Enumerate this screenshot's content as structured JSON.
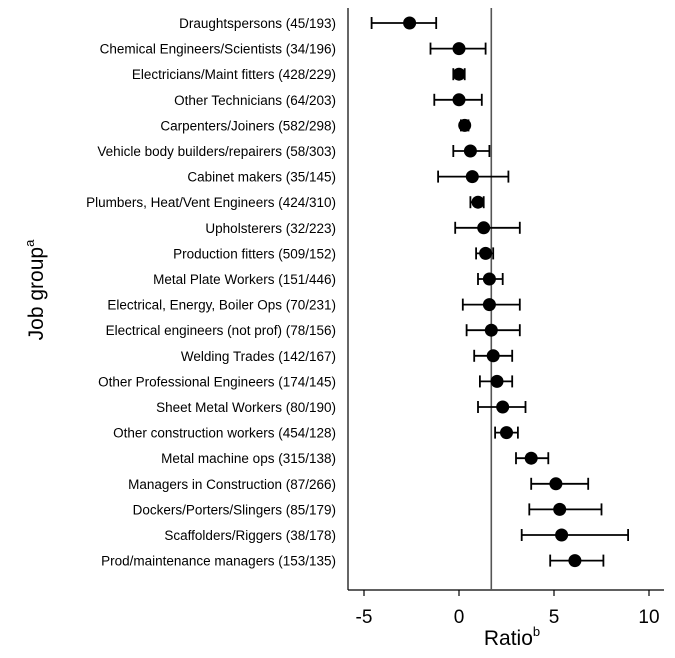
{
  "chart_data": {
    "type": "scatter",
    "subtype": "forest-plot-with-error-bars",
    "xlabel": "Ratio",
    "xlabel_superscript": "b",
    "ylabel": "Job group",
    "ylabel_superscript": "a",
    "xlim": [
      -5.5,
      10
    ],
    "xticks": [
      -5,
      0,
      5,
      10
    ],
    "reference_line_x": 1.7,
    "grid": false,
    "legend": "none",
    "marker_color": "#000000",
    "categories": [
      "Draughtspersons (45/193)",
      "Chemical Engineers/Scientists (34/196)",
      "Electricians/Maint fitters (428/229)",
      "Other Technicians (64/203)",
      "Carpenters/Joiners (582/298)",
      "Vehicle body builders/repairers (58/303)",
      "Cabinet makers (35/145)",
      "Plumbers, Heat/Vent Engineers (424/310)",
      "Upholsterers (32/223)",
      "Production fitters (509/152)",
      "Metal Plate Workers (151/446)",
      "Electrical, Energy, Boiler Ops (70/231)",
      "Electrical engineers (not prof) (78/156)",
      "Welding Trades (142/167)",
      "Other Professional Engineers (174/145)",
      "Sheet Metal Workers (80/190)",
      "Other construction workers (454/128)",
      "Metal machine ops (315/138)",
      "Managers in Construction (87/266)",
      "Dockers/Porters/Slingers (85/179)",
      "Scaffolders/Riggers (38/178)",
      "Prod/maintenance managers (153/135)"
    ],
    "values": [
      -2.6,
      0.0,
      0.0,
      0.0,
      0.3,
      0.6,
      0.7,
      1.0,
      1.3,
      1.4,
      1.6,
      1.6,
      1.7,
      1.8,
      2.0,
      2.3,
      2.5,
      3.8,
      5.1,
      5.3,
      5.4,
      6.1
    ],
    "ci_lower": [
      -4.6,
      -1.5,
      -0.3,
      -1.3,
      0.1,
      -0.3,
      -1.1,
      0.6,
      -0.2,
      0.9,
      1.0,
      0.2,
      0.4,
      0.8,
      1.1,
      1.0,
      1.9,
      3.0,
      3.8,
      3.7,
      3.3,
      4.8
    ],
    "ci_upper": [
      -1.2,
      1.4,
      0.3,
      1.2,
      0.5,
      1.6,
      2.6,
      1.3,
      3.2,
      1.8,
      2.3,
      3.2,
      3.2,
      2.8,
      2.8,
      3.5,
      3.1,
      4.7,
      6.8,
      7.5,
      8.9,
      7.6
    ]
  }
}
